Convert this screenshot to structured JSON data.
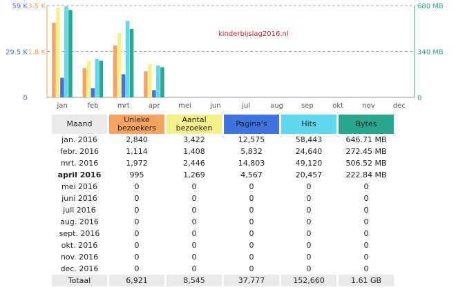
{
  "chart_data": {
    "type": "bar",
    "title": "kinderbijslag2016.nl",
    "categories": [
      "jan",
      "feb",
      "mrt",
      "apr",
      "mei",
      "jun",
      "jul",
      "aug",
      "sep",
      "okt",
      "nov",
      "dec"
    ],
    "axes": {
      "left_unique_ticks": [
        "0",
        "29.5 K",
        "59 K"
      ],
      "left_visits_ticks": [
        "1.8 K",
        "3.5 K"
      ],
      "right_bytes_ticks": [
        "0",
        "340 MB",
        "680 MB"
      ],
      "left_max": 59000,
      "visits_max": 3500,
      "bytes_max": 680
    },
    "grid": true,
    "series": [
      {
        "name": "Unieke bezoekers",
        "color": "#f7a25f",
        "axis": "left",
        "values": [
          2840,
          1114,
          1972,
          995,
          0,
          0,
          0,
          0,
          0,
          0,
          0,
          0
        ]
      },
      {
        "name": "Aantal bezoeken",
        "color": "#f5ef8c",
        "axis": "visits",
        "values": [
          3422,
          1408,
          2446,
          1269,
          0,
          0,
          0,
          0,
          0,
          0,
          0,
          0
        ]
      },
      {
        "name": "Pagina's",
        "color": "#3f73e0",
        "axis": "left",
        "values": [
          12575,
          5832,
          14803,
          4567,
          0,
          0,
          0,
          0,
          0,
          0,
          0,
          0
        ]
      },
      {
        "name": "Hits",
        "color": "#5fd7ec",
        "axis": "left",
        "values": [
          58443,
          24640,
          49120,
          20457,
          0,
          0,
          0,
          0,
          0,
          0,
          0,
          0
        ]
      },
      {
        "name": "Bytes",
        "color": "#2aa88f",
        "axis": "right",
        "values": [
          646.71,
          272.45,
          506.52,
          222.84,
          0,
          0,
          0,
          0,
          0,
          0,
          0,
          0
        ]
      }
    ]
  },
  "table": {
    "headers": [
      "Maand",
      "Unieke bezoekers",
      "Aantal bezoeken",
      "Pagina's",
      "Hits",
      "Bytes"
    ],
    "rows": [
      {
        "month": "jan. 2016",
        "unique": "2,840",
        "visits": "3,422",
        "pages": "12,575",
        "hits": "58,443",
        "bytes": "646.71 MB"
      },
      {
        "month": "febr. 2016",
        "unique": "1,114",
        "visits": "1,408",
        "pages": "5,832",
        "hits": "24,640",
        "bytes": "272.45 MB"
      },
      {
        "month": "mrt. 2016",
        "unique": "1,972",
        "visits": "2,446",
        "pages": "14,803",
        "hits": "49,120",
        "bytes": "506.52 MB"
      },
      {
        "month": "april 2016",
        "unique": "995",
        "visits": "1,269",
        "pages": "4,567",
        "hits": "20,457",
        "bytes": "222.84 MB",
        "current": true
      },
      {
        "month": "mei 2016",
        "unique": "0",
        "visits": "0",
        "pages": "0",
        "hits": "0",
        "bytes": "0"
      },
      {
        "month": "juni 2016",
        "unique": "0",
        "visits": "0",
        "pages": "0",
        "hits": "0",
        "bytes": "0"
      },
      {
        "month": "juli 2016",
        "unique": "0",
        "visits": "0",
        "pages": "0",
        "hits": "0",
        "bytes": "0"
      },
      {
        "month": "aug. 2016",
        "unique": "0",
        "visits": "0",
        "pages": "0",
        "hits": "0",
        "bytes": "0"
      },
      {
        "month": "sept. 2016",
        "unique": "0",
        "visits": "0",
        "pages": "0",
        "hits": "0",
        "bytes": "0"
      },
      {
        "month": "okt. 2016",
        "unique": "0",
        "visits": "0",
        "pages": "0",
        "hits": "0",
        "bytes": "0"
      },
      {
        "month": "nov. 2016",
        "unique": "0",
        "visits": "0",
        "pages": "0",
        "hits": "0",
        "bytes": "0"
      },
      {
        "month": "dec. 2016",
        "unique": "0",
        "visits": "0",
        "pages": "0",
        "hits": "0",
        "bytes": "0"
      }
    ],
    "total": {
      "month": "Totaal",
      "unique": "6,921",
      "visits": "8,545",
      "pages": "37,777",
      "hits": "152,660",
      "bytes": "1.61 GB"
    }
  }
}
